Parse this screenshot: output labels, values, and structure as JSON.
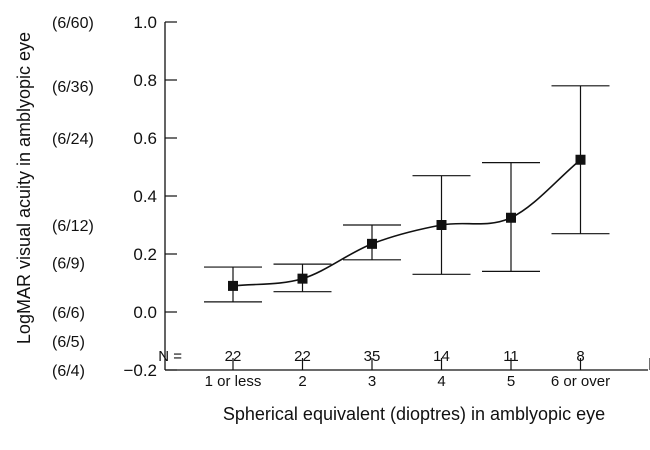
{
  "chart_data": {
    "type": "scatter",
    "ylabel": "LogMAR visual acuity in amblyopic eye",
    "xlabel": "Spherical equivalent (dioptres) in amblyopic eye",
    "ylim": [
      -0.2,
      1.0
    ],
    "yticks": [
      "−0.2",
      "0.0",
      "0.2",
      "0.4",
      "0.6",
      "0.8",
      "1.0"
    ],
    "ytick_values": [
      -0.2,
      0.0,
      0.2,
      0.4,
      0.6,
      0.8,
      1.0
    ],
    "snellen_labels": [
      {
        "value": 1.0,
        "label": "(6/60)"
      },
      {
        "value": 0.78,
        "label": "(6/36)"
      },
      {
        "value": 0.6,
        "label": "(6/24)"
      },
      {
        "value": 0.3,
        "label": "(6/12)"
      },
      {
        "value": 0.17,
        "label": "(6/9)"
      },
      {
        "value": 0.0,
        "label": "(6/6)"
      },
      {
        "value": -0.1,
        "label": "(6/5)"
      },
      {
        "value": -0.2,
        "label": "(6/4)"
      }
    ],
    "n_prefix": "N =",
    "categories": [
      "1 or less",
      "2",
      "3",
      "4",
      "5",
      "6 or over"
    ],
    "n_values": [
      "22",
      "22",
      "35",
      "14",
      "11",
      "8"
    ],
    "values": [
      0.09,
      0.115,
      0.235,
      0.3,
      0.325,
      0.525
    ],
    "error_low": [
      0.035,
      0.07,
      0.18,
      0.13,
      0.14,
      0.27
    ],
    "error_high": [
      0.155,
      0.165,
      0.3,
      0.47,
      0.515,
      0.78
    ],
    "trend_line": "smooth curve through means",
    "grid": false,
    "legend": "none"
  }
}
